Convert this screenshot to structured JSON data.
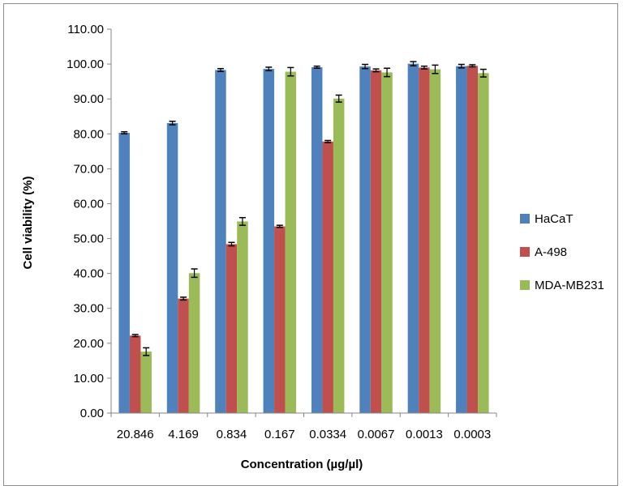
{
  "chart_data": {
    "type": "bar",
    "title": "",
    "xlabel": "Concentration (µg/µl)",
    "ylabel": "Cell viability (%)",
    "ylim": [
      0,
      110
    ],
    "yticks": [
      "0.00",
      "10.00",
      "20.00",
      "30.00",
      "40.00",
      "50.00",
      "60.00",
      "70.00",
      "80.00",
      "90.00",
      "100.00",
      "110.00"
    ],
    "categories": [
      "20.846",
      "4.169",
      "0.834",
      "0.167",
      "0.0334",
      "0.0067",
      "0.0013",
      "0.0003"
    ],
    "grid": false,
    "legend_position": "right",
    "error_bars": true,
    "series": [
      {
        "name": "HaCaT",
        "color": "#4f81bd",
        "values": [
          80.3,
          83.1,
          98.3,
          98.6,
          99.1,
          99.3,
          100.1,
          99.4
        ],
        "errors": [
          0.3,
          0.5,
          0.4,
          0.5,
          0.3,
          0.6,
          0.6,
          0.5
        ]
      },
      {
        "name": "A-498",
        "color": "#c0504d",
        "values": [
          22.2,
          32.8,
          48.4,
          53.5,
          77.8,
          98.2,
          99.0,
          99.5
        ],
        "errors": [
          0.3,
          0.4,
          0.5,
          0.3,
          0.3,
          0.4,
          0.4,
          0.3
        ]
      },
      {
        "name": "MDA-MB231",
        "color": "#9bbb59",
        "values": [
          17.6,
          40.1,
          54.9,
          97.8,
          90.1,
          97.6,
          98.5,
          97.4
        ],
        "errors": [
          1.1,
          1.2,
          1.1,
          1.2,
          1.0,
          1.2,
          1.2,
          1.1
        ]
      }
    ]
  }
}
